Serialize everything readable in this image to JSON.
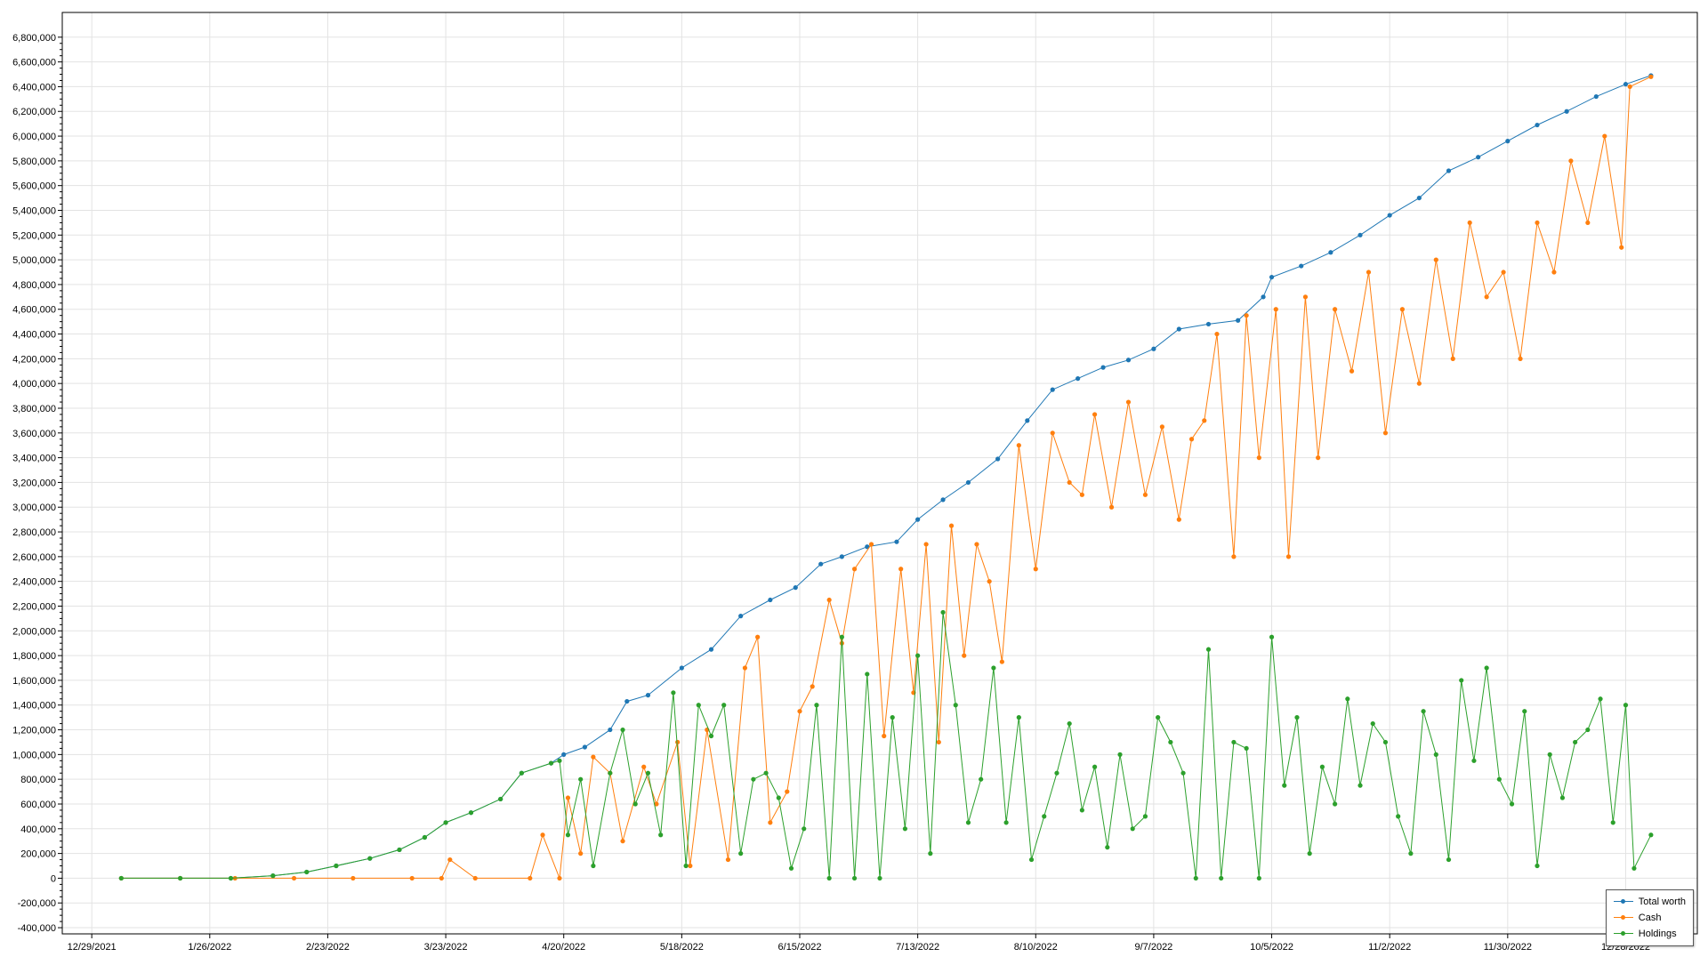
{
  "chart_data": {
    "type": "line",
    "title": "",
    "xlabel": "",
    "ylabel": "",
    "grid": true,
    "legend_position": "bottom-right",
    "xlim": [
      "2021-12-22",
      "2023-01-14"
    ],
    "ylim": [
      -450000,
      7000000
    ],
    "x_tick_labels": [
      "12/29/2021",
      "1/26/2022",
      "2/23/2022",
      "3/23/2022",
      "4/20/2022",
      "5/18/2022",
      "6/15/2022",
      "7/13/2022",
      "8/10/2022",
      "9/7/2022",
      "10/5/2022",
      "11/2/2022",
      "11/30/2022",
      "12/28/2022"
    ],
    "y_tick_labels": [
      "-400,000",
      "-200,000",
      "0",
      "200,000",
      "400,000",
      "600,000",
      "800,000",
      "1,000,000",
      "1,200,000",
      "1,400,000",
      "1,600,000",
      "1,800,000",
      "2,000,000",
      "2,200,000",
      "2,400,000",
      "2,600,000",
      "2,800,000",
      "3,000,000",
      "3,200,000",
      "3,400,000",
      "3,600,000",
      "3,800,000",
      "4,000,000",
      "4,200,000",
      "4,400,000",
      "4,600,000",
      "4,800,000",
      "5,000,000",
      "5,200,000",
      "5,400,000",
      "5,600,000",
      "5,800,000",
      "6,000,000",
      "6,200,000",
      "6,400,000",
      "6,600,000",
      "6,800,000"
    ],
    "series": [
      {
        "name": "Total worth",
        "color": "#1f77b4",
        "x": [
          "2022-01-05",
          "2022-01-19",
          "2022-01-31",
          "2022-02-10",
          "2022-02-18",
          "2022-02-25",
          "2022-03-05",
          "2022-03-12",
          "2022-03-18",
          "2022-03-23",
          "2022-03-29",
          "2022-04-05",
          "2022-04-10",
          "2022-04-17",
          "2022-04-20",
          "2022-04-25",
          "2022-05-01",
          "2022-05-05",
          "2022-05-10",
          "2022-05-18",
          "2022-05-25",
          "2022-06-01",
          "2022-06-08",
          "2022-06-14",
          "2022-06-20",
          "2022-06-25",
          "2022-07-01",
          "2022-07-08",
          "2022-07-13",
          "2022-07-19",
          "2022-07-25",
          "2022-08-01",
          "2022-08-08",
          "2022-08-14",
          "2022-08-20",
          "2022-08-26",
          "2022-09-01",
          "2022-09-07",
          "2022-09-13",
          "2022-09-20",
          "2022-09-27",
          "2022-10-03",
          "2022-10-05",
          "2022-10-12",
          "2022-10-19",
          "2022-10-26",
          "2022-11-02",
          "2022-11-09",
          "2022-11-16",
          "2022-11-23",
          "2022-11-30",
          "2022-12-07",
          "2022-12-14",
          "2022-12-21",
          "2022-12-28",
          "2023-01-03"
        ],
        "y": [
          0,
          0,
          0,
          20000,
          50000,
          100000,
          160000,
          230000,
          330000,
          450000,
          530000,
          640000,
          850000,
          930000,
          1000000,
          1060000,
          1200000,
          1430000,
          1480000,
          1700000,
          1850000,
          2120000,
          2250000,
          2350000,
          2540000,
          2600000,
          2680000,
          2720000,
          2900000,
          3060000,
          3200000,
          3390000,
          3700000,
          3950000,
          4040000,
          4130000,
          4190000,
          4280000,
          4440000,
          4480000,
          4510000,
          4700000,
          4860000,
          4950000,
          5060000,
          5200000,
          5360000,
          5500000,
          5720000,
          5830000,
          5960000,
          6090000,
          6200000,
          6320000,
          6420000,
          6490000
        ]
      },
      {
        "name": "Cash",
        "color": "#ff7f0e",
        "x": [
          "2022-01-05",
          "2022-01-19",
          "2022-02-01",
          "2022-02-15",
          "2022-03-01",
          "2022-03-15",
          "2022-03-22",
          "2022-03-24",
          "2022-03-30",
          "2022-04-12",
          "2022-04-15",
          "2022-04-19",
          "2022-04-21",
          "2022-04-24",
          "2022-04-27",
          "2022-05-01",
          "2022-05-04",
          "2022-05-09",
          "2022-05-12",
          "2022-05-17",
          "2022-05-20",
          "2022-05-24",
          "2022-05-29",
          "2022-06-02",
          "2022-06-05",
          "2022-06-08",
          "2022-06-12",
          "2022-06-15",
          "2022-06-18",
          "2022-06-22",
          "2022-06-25",
          "2022-06-28",
          "2022-07-02",
          "2022-07-05",
          "2022-07-09",
          "2022-07-12",
          "2022-07-15",
          "2022-07-18",
          "2022-07-21",
          "2022-07-24",
          "2022-07-27",
          "2022-07-30",
          "2022-08-02",
          "2022-08-06",
          "2022-08-10",
          "2022-08-14",
          "2022-08-18",
          "2022-08-21",
          "2022-08-24",
          "2022-08-28",
          "2022-09-01",
          "2022-09-05",
          "2022-09-09",
          "2022-09-13",
          "2022-09-16",
          "2022-09-19",
          "2022-09-22",
          "2022-09-26",
          "2022-09-29",
          "2022-10-02",
          "2022-10-06",
          "2022-10-09",
          "2022-10-13",
          "2022-10-16",
          "2022-10-20",
          "2022-10-24",
          "2022-10-28",
          "2022-11-01",
          "2022-11-05",
          "2022-11-09",
          "2022-11-13",
          "2022-11-17",
          "2022-11-21",
          "2022-11-25",
          "2022-11-29",
          "2022-12-03",
          "2022-12-07",
          "2022-12-11",
          "2022-12-15",
          "2022-12-19",
          "2022-12-23",
          "2022-12-27",
          "2022-12-29",
          "2023-01-03"
        ],
        "y": [
          0,
          0,
          0,
          0,
          0,
          0,
          0,
          150000,
          0,
          0,
          350000,
          0,
          650000,
          200000,
          980000,
          850000,
          300000,
          900000,
          600000,
          1100000,
          100000,
          1200000,
          150000,
          1700000,
          1950000,
          450000,
          700000,
          1350000,
          1550000,
          2250000,
          1900000,
          2500000,
          2700000,
          1150000,
          2500000,
          1500000,
          2700000,
          1100000,
          2850000,
          1800000,
          2700000,
          2400000,
          1750000,
          3500000,
          2500000,
          3600000,
          3200000,
          3100000,
          3750000,
          3000000,
          3850000,
          3100000,
          3650000,
          2900000,
          3550000,
          3700000,
          4400000,
          2600000,
          4550000,
          3400000,
          4600000,
          2600000,
          4700000,
          3400000,
          4600000,
          4100000,
          4900000,
          3600000,
          4600000,
          4000000,
          5000000,
          4200000,
          5300000,
          4700000,
          4900000,
          4200000,
          5300000,
          4900000,
          5800000,
          5300000,
          6000000,
          5100000,
          6400000,
          6480000
        ]
      },
      {
        "name": "Holdings",
        "color": "#2ca02c",
        "x": [
          "2022-01-05",
          "2022-01-19",
          "2022-01-31",
          "2022-02-10",
          "2022-02-18",
          "2022-02-25",
          "2022-03-05",
          "2022-03-12",
          "2022-03-18",
          "2022-03-23",
          "2022-03-29",
          "2022-04-05",
          "2022-04-10",
          "2022-04-17",
          "2022-04-19",
          "2022-04-21",
          "2022-04-24",
          "2022-04-27",
          "2022-05-01",
          "2022-05-04",
          "2022-05-07",
          "2022-05-10",
          "2022-05-13",
          "2022-05-16",
          "2022-05-19",
          "2022-05-22",
          "2022-05-25",
          "2022-05-28",
          "2022-06-01",
          "2022-06-04",
          "2022-06-07",
          "2022-06-10",
          "2022-06-13",
          "2022-06-16",
          "2022-06-19",
          "2022-06-22",
          "2022-06-25",
          "2022-06-28",
          "2022-07-01",
          "2022-07-04",
          "2022-07-07",
          "2022-07-10",
          "2022-07-13",
          "2022-07-16",
          "2022-07-19",
          "2022-07-22",
          "2022-07-25",
          "2022-07-28",
          "2022-07-31",
          "2022-08-03",
          "2022-08-06",
          "2022-08-09",
          "2022-08-12",
          "2022-08-15",
          "2022-08-18",
          "2022-08-21",
          "2022-08-24",
          "2022-08-27",
          "2022-08-30",
          "2022-09-02",
          "2022-09-05",
          "2022-09-08",
          "2022-09-11",
          "2022-09-14",
          "2022-09-17",
          "2022-09-20",
          "2022-09-23",
          "2022-09-26",
          "2022-09-29",
          "2022-10-02",
          "2022-10-05",
          "2022-10-08",
          "2022-10-11",
          "2022-10-14",
          "2022-10-17",
          "2022-10-20",
          "2022-10-23",
          "2022-10-26",
          "2022-10-29",
          "2022-11-01",
          "2022-11-04",
          "2022-11-07",
          "2022-11-10",
          "2022-11-13",
          "2022-11-16",
          "2022-11-19",
          "2022-11-22",
          "2022-11-25",
          "2022-11-28",
          "2022-12-01",
          "2022-12-04",
          "2022-12-07",
          "2022-12-10",
          "2022-12-13",
          "2022-12-16",
          "2022-12-19",
          "2022-12-22",
          "2022-12-25",
          "2022-12-28",
          "2022-12-30",
          "2023-01-03"
        ],
        "y": [
          0,
          0,
          0,
          20000,
          50000,
          100000,
          160000,
          230000,
          330000,
          450000,
          530000,
          640000,
          850000,
          930000,
          950000,
          350000,
          800000,
          100000,
          850000,
          1200000,
          600000,
          850000,
          350000,
          1500000,
          100000,
          1400000,
          1150000,
          1400000,
          200000,
          800000,
          850000,
          650000,
          80000,
          400000,
          1400000,
          0,
          1950000,
          0,
          1650000,
          0,
          1300000,
          400000,
          1800000,
          200000,
          2150000,
          1400000,
          450000,
          800000,
          1700000,
          450000,
          1300000,
          150000,
          500000,
          850000,
          1250000,
          550000,
          900000,
          250000,
          1000000,
          400000,
          500000,
          1300000,
          1100000,
          850000,
          0,
          1850000,
          0,
          1100000,
          1050000,
          0,
          1950000,
          750000,
          1300000,
          200000,
          900000,
          600000,
          1450000,
          750000,
          1250000,
          1100000,
          500000,
          200000,
          1350000,
          1000000,
          150000,
          1600000,
          950000,
          1700000,
          800000,
          600000,
          1350000,
          100000,
          1000000,
          650000,
          1100000,
          1200000,
          1450000,
          450000,
          1400000,
          80000,
          350000
        ]
      }
    ]
  }
}
